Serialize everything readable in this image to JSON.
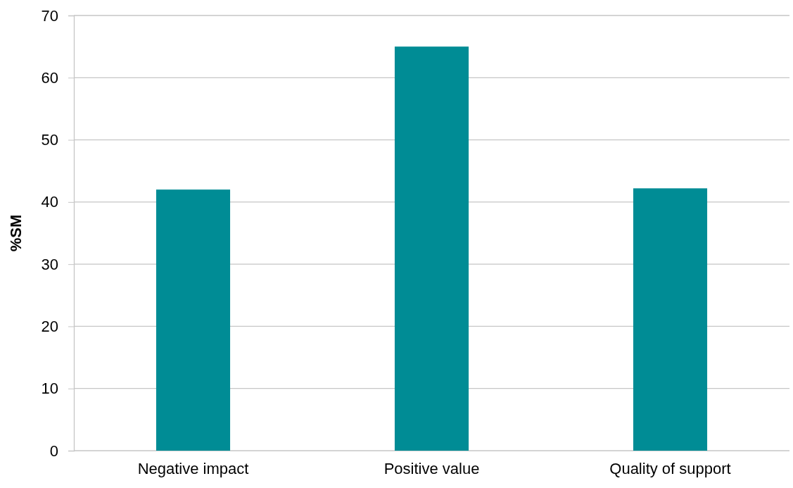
{
  "chart_data": {
    "type": "bar",
    "ylabel": "%SM",
    "categories": [
      "Negative impact",
      "Positive value",
      "Quality of support"
    ],
    "values": [
      42,
      65,
      42.2
    ],
    "color": "#008c95",
    "ylim": [
      0,
      70
    ],
    "yticks": [
      0,
      10,
      20,
      30,
      40,
      50,
      60,
      70
    ],
    "grid": "y"
  }
}
